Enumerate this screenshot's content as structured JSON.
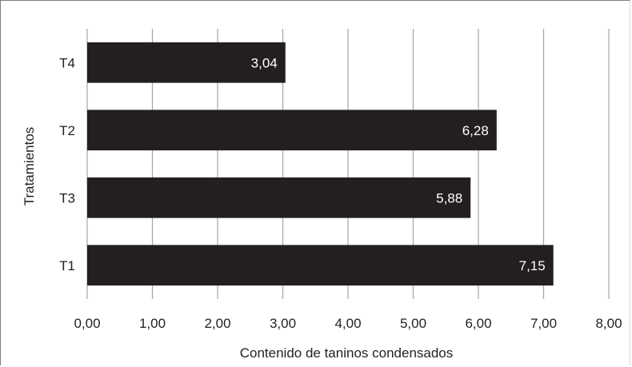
{
  "chart_data": {
    "type": "bar",
    "orientation": "horizontal",
    "categories": [
      "T4",
      "T2",
      "T3",
      "T1"
    ],
    "values": [
      3.04,
      6.28,
      5.88,
      7.15
    ],
    "value_labels": [
      "3,04",
      "6,28",
      "5,88",
      "7,15"
    ],
    "xlabel": "Contenido de taninos condensados",
    "ylabel": "Tratamientos",
    "xlim": [
      0,
      8
    ],
    "xticks": [
      0,
      1,
      2,
      3,
      4,
      5,
      6,
      7,
      8
    ],
    "xtick_labels": [
      "0,00",
      "1,00",
      "2,00",
      "3,00",
      "4,00",
      "5,00",
      "6,00",
      "7,00",
      "8,00"
    ],
    "grid": "vertical",
    "legend": "none",
    "bar_color": "#231f20",
    "grid_color": "#a6a6a6",
    "label_color": "#ffffff",
    "text_color": "#231f20"
  }
}
